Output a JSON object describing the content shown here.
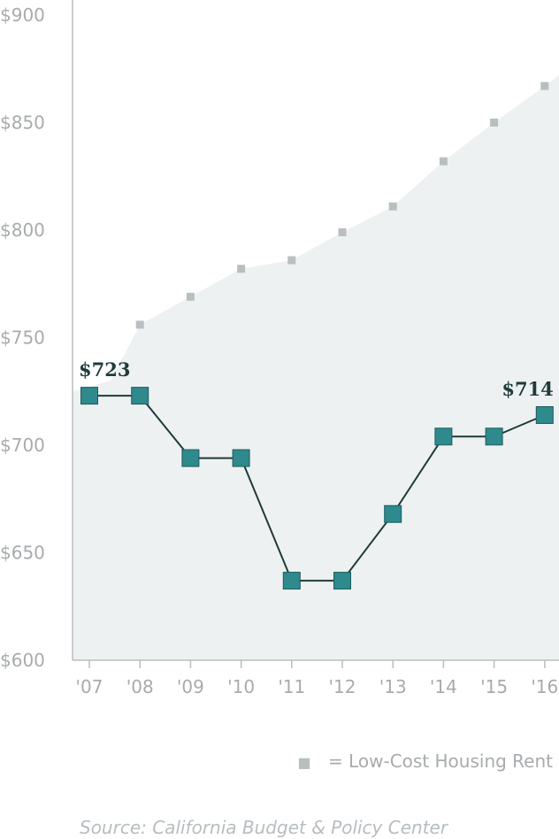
{
  "chart_data": {
    "type": "line",
    "categories": [
      "'07",
      "'08",
      "'09",
      "'10",
      "'11",
      "'12",
      "'13",
      "'14",
      "'15",
      "'16"
    ],
    "y_tick_labels": [
      "$600",
      "$650",
      "$700",
      "$750",
      "$800",
      "$850",
      "$900"
    ],
    "ylim": [
      600,
      900
    ],
    "series": [
      {
        "key": "rent",
        "style": "line-with-squares",
        "values": [
          723,
          723,
          694,
          694,
          637,
          637,
          668,
          704,
          704,
          714
        ]
      },
      {
        "key": "low_cost",
        "name": "Low-Cost Housing Rent",
        "style": "area-with-small-squares",
        "values": [
          null,
          756,
          769,
          782,
          786,
          799,
          811,
          832,
          850,
          867
        ],
        "area_start_value": 725,
        "area_end_value": 872
      }
    ],
    "data_labels": [
      {
        "series": "rent",
        "index": 0,
        "text": "$723"
      },
      {
        "series": "rent",
        "index": 9,
        "text": "$714"
      }
    ],
    "legend": {
      "symbol": "■",
      "text": "= Low-Cost Housing Rent",
      "placement": "bottom-right"
    },
    "colors": {
      "main_fill": "#2e8a8c",
      "main_stroke": "#1f5b5c",
      "line": "#1f3b3a",
      "area": "#eef1f1",
      "area_marker": "#b9bfc0",
      "axis": "#b8bec0",
      "tick_text": "#a8abad"
    },
    "grid": false
  },
  "source": "Source: California Budget & Policy Center"
}
